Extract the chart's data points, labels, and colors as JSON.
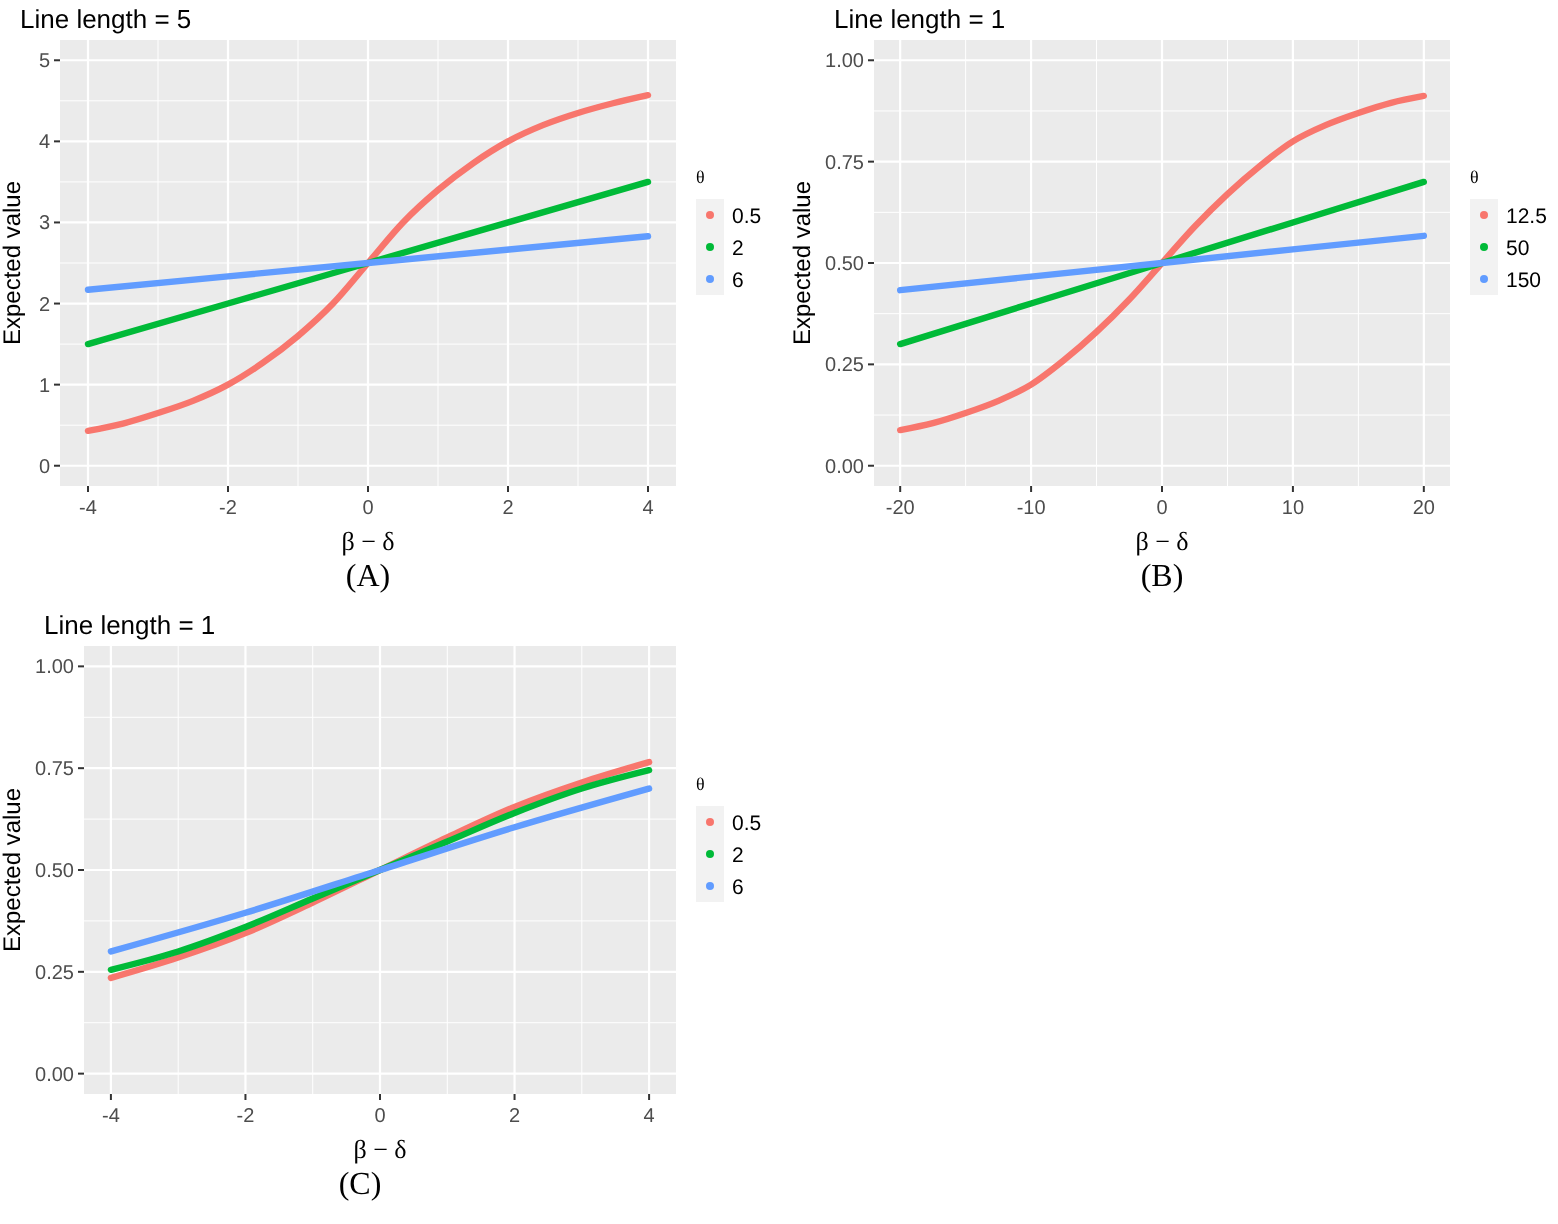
{
  "chart_data": [
    {
      "type": "line",
      "title": "Line length = 5",
      "xlabel": "β − δ",
      "ylabel": "Expected value",
      "legend_title": "θ",
      "legend": "right",
      "grid": true,
      "xlim": [
        -4.4,
        4.4
      ],
      "xticks": [
        -4,
        -2,
        0,
        2,
        4
      ],
      "ylim": [
        -0.25,
        5.25
      ],
      "yticks": [
        0,
        1,
        2,
        3,
        4,
        5
      ],
      "annotations": [
        "(A)"
      ],
      "series": [
        {
          "name": "0.5",
          "color": "#f8766d",
          "x": [
            -4,
            -3.5,
            -3,
            -2.5,
            -2,
            -1.5,
            -1,
            -0.5,
            0,
            0.5,
            1,
            1.5,
            2,
            2.5,
            3,
            3.5,
            4
          ],
          "values": [
            0.43,
            0.52,
            0.65,
            0.8,
            1.0,
            1.27,
            1.6,
            2.0,
            2.5,
            3.0,
            3.4,
            3.73,
            4.0,
            4.2,
            4.35,
            4.47,
            4.57
          ]
        },
        {
          "name": "2",
          "color": "#00ba38",
          "x": [
            -4,
            0,
            4
          ],
          "values": [
            1.5,
            2.5,
            3.5
          ]
        },
        {
          "name": "6",
          "color": "#619cff",
          "x": [
            -4,
            0,
            4
          ],
          "values": [
            2.17,
            2.5,
            2.83
          ]
        }
      ]
    },
    {
      "type": "line",
      "title": "Line length = 1",
      "xlabel": "β − δ",
      "ylabel": "Expected value",
      "legend_title": "θ",
      "legend": "right",
      "grid": true,
      "xlim": [
        -22,
        22
      ],
      "xticks": [
        -20,
        -10,
        0,
        10,
        20
      ],
      "ylim": [
        -0.05,
        1.05
      ],
      "yticks": [
        {
          "value": 0,
          "label": "0.00"
        },
        {
          "value": 0.25,
          "label": "0.25"
        },
        {
          "value": 0.5,
          "label": "0.50"
        },
        {
          "value": 0.75,
          "label": "0.75"
        },
        {
          "value": 1,
          "label": "1.00"
        }
      ],
      "annotations": [
        "(B)"
      ],
      "series": [
        {
          "name": "12.5",
          "color": "#f8766d",
          "x": [
            -20,
            -17.5,
            -15,
            -12.5,
            -10,
            -7.5,
            -5,
            -2.5,
            0,
            2.5,
            5,
            7.5,
            10,
            12.5,
            15,
            17.5,
            20
          ],
          "values": [
            0.088,
            0.105,
            0.13,
            0.16,
            0.2,
            0.26,
            0.33,
            0.41,
            0.5,
            0.59,
            0.67,
            0.74,
            0.8,
            0.84,
            0.87,
            0.895,
            0.912
          ]
        },
        {
          "name": "50",
          "color": "#00ba38",
          "x": [
            -20,
            0,
            20
          ],
          "values": [
            0.3,
            0.5,
            0.7
          ]
        },
        {
          "name": "150",
          "color": "#619cff",
          "x": [
            -20,
            0,
            20
          ],
          "values": [
            0.433,
            0.5,
            0.567
          ]
        }
      ]
    },
    {
      "type": "line",
      "title": "Line length = 1",
      "xlabel": "β − δ",
      "ylabel": "Expected value",
      "legend_title": "θ",
      "legend": "right",
      "grid": true,
      "xlim": [
        -4.4,
        4.4
      ],
      "xticks": [
        -4,
        -2,
        0,
        2,
        4
      ],
      "ylim": [
        -0.05,
        1.05
      ],
      "yticks": [
        {
          "value": 0,
          "label": "0.00"
        },
        {
          "value": 0.25,
          "label": "0.25"
        },
        {
          "value": 0.5,
          "label": "0.50"
        },
        {
          "value": 0.75,
          "label": "0.75"
        },
        {
          "value": 1,
          "label": "1.00"
        }
      ],
      "annotations": [
        "(C)"
      ],
      "series": [
        {
          "name": "0.5",
          "color": "#f8766d",
          "x": [
            -4,
            -3,
            -2,
            -1,
            0,
            1,
            2,
            3,
            4
          ],
          "values": [
            0.235,
            0.285,
            0.345,
            0.42,
            0.5,
            0.58,
            0.655,
            0.715,
            0.765
          ]
        },
        {
          "name": "2",
          "color": "#00ba38",
          "x": [
            -4,
            -3,
            -2,
            -1,
            0,
            1,
            2,
            3,
            4
          ],
          "values": [
            0.255,
            0.3,
            0.36,
            0.43,
            0.5,
            0.57,
            0.64,
            0.7,
            0.745
          ]
        },
        {
          "name": "6",
          "color": "#619cff",
          "x": [
            -4,
            -2,
            0,
            2,
            4
          ],
          "values": [
            0.3,
            0.395,
            0.5,
            0.605,
            0.7
          ]
        }
      ]
    }
  ]
}
